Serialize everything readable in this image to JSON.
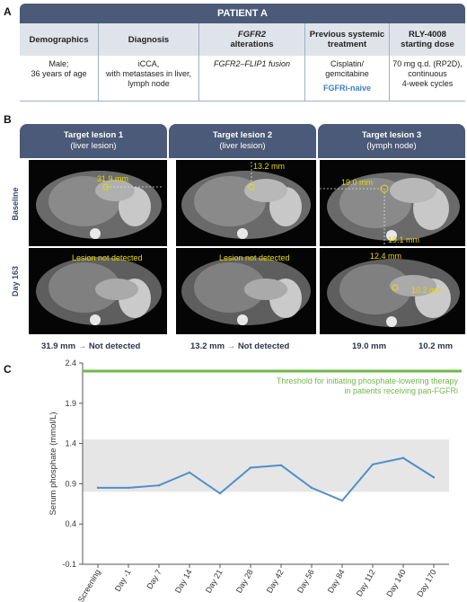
{
  "panel_a": {
    "letter": "A",
    "header": "PATIENT A",
    "columns": [
      "Demographics",
      "Diagnosis",
      "FGFR2",
      "alterations",
      "Previous systemic",
      "treatment",
      "RLY-4008",
      "starting dose"
    ],
    "demographics": [
      "Male;",
      "36 years of age"
    ],
    "diagnosis": [
      "iCCA,",
      "with metastases in liver,",
      "lymph node"
    ],
    "alteration": "FGFR2–FLIP1 fusion",
    "treatment": [
      "Cisplatin/",
      "gemcitabine"
    ],
    "treatment_note": "FGFRi-naive",
    "dose": [
      "70 mg q.d. (RP2D),",
      "continuous",
      "4-week cycles"
    ]
  },
  "panel_b": {
    "letter": "B",
    "lesions": [
      {
        "title": "Target lesion 1",
        "subtitle": "(liver lesion)"
      },
      {
        "title": "Target lesion 2",
        "subtitle": "(liver lesion)"
      },
      {
        "title": "Target lesion 3",
        "subtitle": "(lymph node)"
      }
    ],
    "row_labels": [
      "Baseline",
      "Day 163"
    ],
    "scan_labels": {
      "b1": "31.9 mm",
      "b2": "13.2 mm",
      "b3a": "19.0 mm",
      "b3b": "19.1 mm",
      "d1": "Lesion not detected",
      "d2": "Lesion not detected",
      "d3a": "12.4 mm",
      "d3b": "10.2 mm"
    },
    "measurements": {
      "l1_start": "31.9 mm",
      "l1_end": "Not detected",
      "l2_start": "13.2 mm",
      "l2_end": "Not detected",
      "l3_a": "19.0 mm",
      "l3_b": "10.2 mm"
    }
  },
  "panel_c": {
    "letter": "C",
    "threshold_label": [
      "Threshold for initiating phosphate-lowering therapy",
      "in patients receiving pan-FGFRi"
    ]
  },
  "colors": {
    "header": "#4a5a78",
    "line": "#4f8fca",
    "threshold": "#6fb84a",
    "band": "#e6e6e6",
    "accent": "#3a7fc0"
  },
  "chart_data": {
    "type": "line",
    "categories": [
      "Screening",
      "Day -1",
      "Day 7",
      "Day 14",
      "Day 21",
      "Day 28",
      "Day 42",
      "Day 56",
      "Day 84",
      "Day 112",
      "Day 140",
      "Day 170"
    ],
    "series": [
      {
        "values": [
          0.85,
          0.85,
          0.88,
          1.04,
          0.78,
          1.1,
          1.13,
          0.85,
          0.69,
          1.14,
          1.22,
          0.98
        ]
      }
    ],
    "threshold": 2.3,
    "normal_range": [
      0.8,
      1.45
    ],
    "ylabel": "Serum phosphate (mmol/L)",
    "yticks": [
      -0.1,
      0.4,
      0.9,
      1.4,
      1.9,
      2.4
    ],
    "ylim": [
      -0.1,
      2.4
    ]
  }
}
